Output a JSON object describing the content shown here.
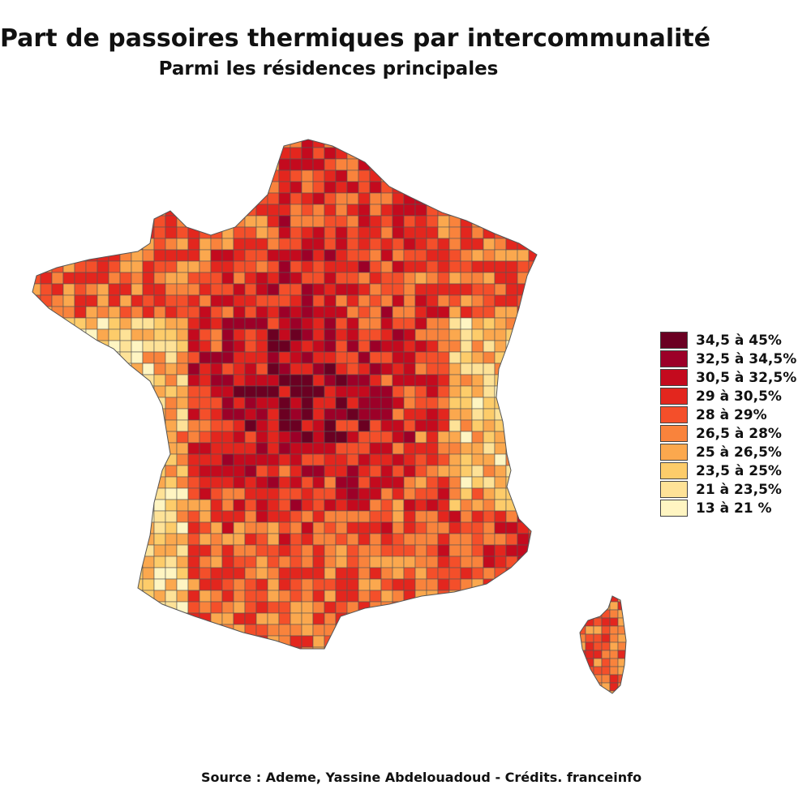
{
  "header": {
    "title": "Part de passoires thermiques par intercommunalité",
    "subtitle": "Parmi les résidences principales"
  },
  "legend": {
    "items": [
      {
        "label": "34,5 à 45%",
        "color": "#6b0022"
      },
      {
        "label": "32,5 à 34,5%",
        "color": "#9c0028"
      },
      {
        "label": "30,5 à 32,5%",
        "color": "#c40a1e"
      },
      {
        "label": "29 à 30,5%",
        "color": "#e3261e"
      },
      {
        "label": "28 à 29%",
        "color": "#f44f2a"
      },
      {
        "label": "26,5 à 28%",
        "color": "#f9833c"
      },
      {
        "label": "25 à 26,5%",
        "color": "#fba84e"
      },
      {
        "label": "23,5 à 25%",
        "color": "#fdcc6a"
      },
      {
        "label": "21 à 23,5%",
        "color": "#fee297"
      },
      {
        "label": "13 à 21 %",
        "color": "#fff5c2"
      }
    ]
  },
  "source": {
    "text": "Source : Ademe, Yassine Abdelouadoud - Crédits. franceinfo"
  },
  "map": {
    "regions": [
      "France métropolitaine",
      "Corse"
    ],
    "border_color": "#555555"
  }
}
